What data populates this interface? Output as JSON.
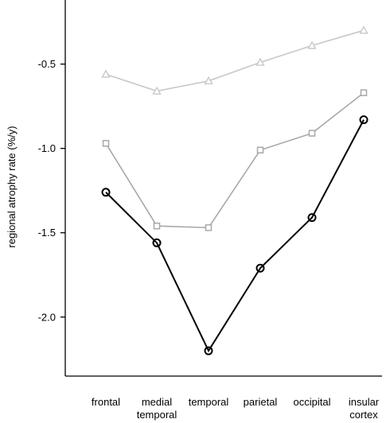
{
  "chart_data": {
    "type": "line",
    "title": "",
    "xlabel": "",
    "ylabel": "regional atrophy rate (%/y)",
    "categories": [
      [
        "frontal"
      ],
      [
        "medial",
        "temporal"
      ],
      [
        "temporal"
      ],
      [
        "parietal"
      ],
      [
        "occipital"
      ],
      [
        "insular",
        "cortex"
      ]
    ],
    "ylim": [
      -2.35,
      -0.12
    ],
    "yticks": [
      -0.5,
      -1.0,
      -1.5,
      -2.0
    ],
    "ytick_labels": [
      "-0.5",
      "-1.0",
      "-1.5",
      "-2.0"
    ],
    "grid": false,
    "legend": "none",
    "series": [
      {
        "values": [
          -0.56,
          -0.66,
          -0.6,
          -0.49,
          -0.39,
          -0.3
        ],
        "marker": "triangle",
        "color": "#c8c8c8"
      },
      {
        "values": [
          -0.97,
          -1.46,
          -1.47,
          -1.01,
          -0.91,
          -0.67
        ],
        "marker": "square",
        "color": "#a8a8a8"
      },
      {
        "values": [
          -1.26,
          -1.56,
          -2.2,
          -1.71,
          -1.41,
          -0.83
        ],
        "marker": "circle",
        "color": "#000000"
      }
    ]
  }
}
